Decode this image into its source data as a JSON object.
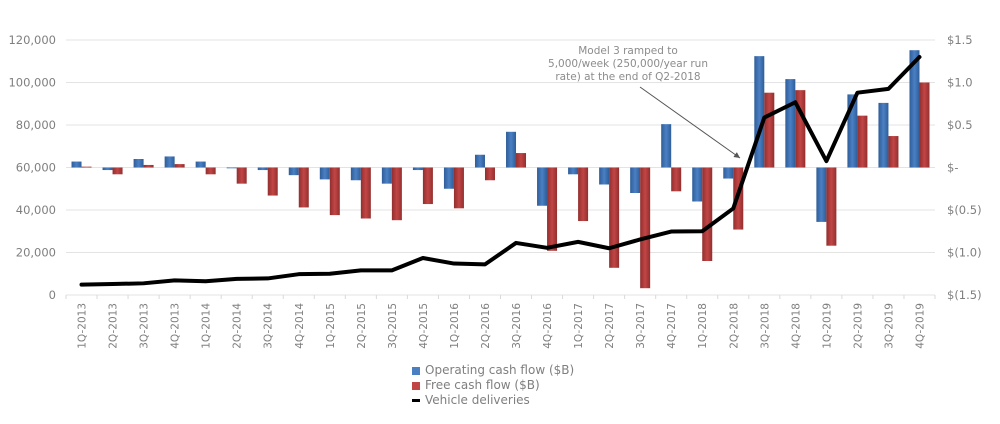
{
  "chart_data": {
    "type": "bar+line",
    "title": "",
    "categories": [
      "1Q-2013",
      "2Q-2013",
      "3Q-2013",
      "4Q-2013",
      "1Q-2014",
      "2Q-2014",
      "3Q-2014",
      "4Q-2014",
      "1Q-2015",
      "2Q-2015",
      "3Q-2015",
      "4Q-2015",
      "1Q-2016",
      "2Q-2016",
      "3Q-2016",
      "4Q-2016",
      "1Q-2017",
      "2Q-2017",
      "3Q-2017",
      "4Q-2017",
      "1Q-2018",
      "2Q-2018",
      "3Q-2018",
      "4Q-2018",
      "1Q-2019",
      "2Q-2019",
      "3Q-2019",
      "4Q-2019"
    ],
    "series": [
      {
        "name": "Operating cash flow ($B)",
        "axis": "right",
        "type": "bar",
        "color": "#3a6fb0",
        "values": [
          0.07,
          -0.03,
          0.1,
          0.13,
          0.07,
          0.0,
          -0.03,
          -0.09,
          -0.14,
          -0.15,
          -0.19,
          -0.03,
          -0.25,
          0.15,
          0.42,
          -0.45,
          -0.08,
          -0.2,
          -0.3,
          0.51,
          -0.4,
          -0.13,
          1.31,
          1.04,
          -0.64,
          0.86,
          0.76,
          1.38
        ]
      },
      {
        "name": "Free cash flow ($B)",
        "axis": "right",
        "type": "bar",
        "color": "#b03a3a",
        "values": [
          0.01,
          -0.08,
          0.03,
          0.04,
          -0.08,
          -0.19,
          -0.33,
          -0.47,
          -0.56,
          -0.6,
          -0.62,
          -0.43,
          -0.48,
          -0.15,
          0.17,
          -0.98,
          -0.63,
          -1.18,
          -1.42,
          -0.28,
          -1.1,
          -0.73,
          0.88,
          0.91,
          -0.92,
          0.61,
          0.37,
          1.0
        ]
      },
      {
        "name": "Vehicle deliveries",
        "axis": "left",
        "type": "line",
        "color": "#000000",
        "values": [
          4900,
          5150,
          5500,
          6900,
          6450,
          7600,
          7800,
          9800,
          10000,
          11600,
          11600,
          17400,
          14800,
          14400,
          24500,
          22200,
          25000,
          22000,
          26150,
          29870,
          29980,
          40740,
          83500,
          90700,
          63000,
          95200,
          97000,
          112000
        ]
      }
    ],
    "left_axis": {
      "ylim": [
        0,
        120000
      ],
      "ticks": [
        "0",
        "20,000",
        "40,000",
        "60,000",
        "80,000",
        "100,000",
        "120,000"
      ]
    },
    "right_axis": {
      "ylim": [
        -1.5,
        1.5
      ],
      "ticks": [
        "$(1.5)",
        "$(1.0)",
        "$(0.5)",
        "$-",
        "$0.5",
        "$1.0",
        "$1.5"
      ]
    },
    "grid": true,
    "legend": {
      "placement": "bottom",
      "entries": [
        "Operating cash flow ($B)",
        "Free cash flow ($B)",
        "Vehicle deliveries"
      ]
    },
    "annotation": {
      "lines": [
        "Model 3 ramped to",
        "5,000/week (250,000/year run",
        "rate) at the end of Q2-2018"
      ],
      "target_category": "2Q-2018"
    }
  }
}
